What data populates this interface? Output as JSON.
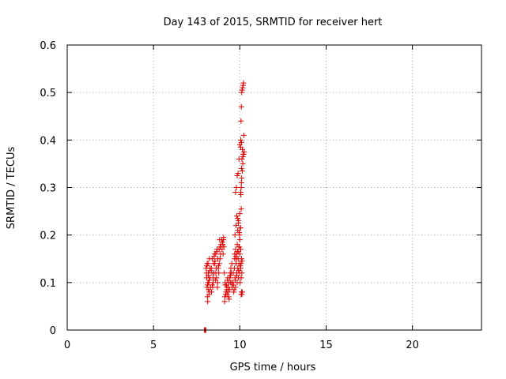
{
  "chart_data": {
    "type": "scatter",
    "title": "Day 143 of 2015, SRMTID for receiver hert",
    "xlabel": "GPS time / hours",
    "ylabel": "SRMTID / TECUs",
    "xlim": [
      0,
      24
    ],
    "ylim": [
      0,
      0.6
    ],
    "xticks": [
      0,
      5,
      10,
      15,
      20
    ],
    "yticks": [
      0,
      0.1,
      0.2,
      0.3,
      0.4,
      0.5,
      0.6
    ],
    "ytick_labels": [
      "0",
      "0.1",
      "0.2",
      "0.3",
      "0.4",
      "0.5",
      "0.6"
    ],
    "grid": true,
    "marker": "plus",
    "color": "#e00000",
    "series": [
      {
        "name": "SRMTID",
        "x": [
          7.95,
          7.97,
          7.99,
          8.01,
          8.03,
          8.05,
          8.08,
          8.1,
          8.12,
          8.14,
          8.16,
          8.18,
          8.2,
          8.22,
          8.24,
          8.26,
          8.28,
          8.3,
          8.07,
          8.11,
          8.15,
          8.19,
          8.23,
          8.27,
          8.09,
          8.13,
          8.17,
          8.21,
          8.35,
          8.4,
          8.45,
          8.5,
          8.55,
          8.6,
          8.65,
          8.7,
          8.75,
          8.8,
          8.85,
          8.9,
          8.38,
          8.43,
          8.48,
          8.53,
          8.58,
          8.63,
          8.68,
          8.73,
          8.78,
          8.83,
          8.88,
          8.36,
          8.46,
          8.56,
          8.66,
          8.76,
          8.86,
          8.41,
          8.51,
          8.61,
          8.71,
          8.81,
          8.95,
          9.0,
          9.02,
          9.05,
          9.08,
          8.97,
          9.03,
          9.06,
          9.1,
          9.15,
          9.2,
          9.25,
          9.3,
          9.35,
          9.4,
          9.45,
          9.5,
          9.55,
          9.12,
          9.18,
          9.22,
          9.28,
          9.32,
          9.38,
          9.42,
          9.48,
          9.52,
          9.14,
          9.24,
          9.34,
          9.44,
          9.54,
          9.16,
          9.26,
          9.36,
          9.46,
          9.6,
          9.62,
          9.65,
          9.68,
          9.7,
          9.72,
          9.75,
          9.78,
          9.8,
          9.82,
          9.85,
          9.88,
          9.9,
          9.92,
          9.95,
          9.98,
          10.0,
          10.02,
          10.05,
          10.08,
          10.1,
          10.12,
          9.63,
          9.73,
          9.83,
          9.93,
          10.03,
          10.13,
          9.67,
          9.77,
          9.87,
          9.97,
          10.07,
          9.7,
          9.75,
          9.8,
          9.85,
          9.9,
          9.95,
          10.0,
          10.05,
          9.72,
          9.78,
          9.82,
          9.88,
          9.92,
          9.98,
          10.02,
          9.75,
          9.8,
          9.85,
          9.9,
          9.95,
          10.0,
          10.05,
          10.1,
          9.88,
          9.92,
          9.96,
          10.0,
          10.04,
          10.08,
          10.05,
          10.08,
          10.1,
          10.12,
          10.15,
          10.18,
          10.2,
          10.06,
          10.09,
          10.11,
          10.14,
          10.17,
          10.22,
          10.25,
          10.05,
          10.07,
          10.09,
          10.11,
          10.13,
          10.16,
          10.19,
          10.21,
          10.23,
          10.08,
          10.1,
          10.12,
          10.14
        ],
        "y": [
          0.0,
          0.0,
          0.0,
          0.0,
          0.0,
          0.13,
          0.11,
          0.09,
          0.07,
          0.06,
          0.14,
          0.12,
          0.1,
          0.08,
          0.15,
          0.11,
          0.13,
          0.09,
          0.12,
          0.14,
          0.1,
          0.085,
          0.105,
          0.125,
          0.135,
          0.095,
          0.115,
          0.075,
          0.13,
          0.15,
          0.1,
          0.12,
          0.14,
          0.16,
          0.11,
          0.09,
          0.13,
          0.17,
          0.15,
          0.18,
          0.12,
          0.09,
          0.14,
          0.16,
          0.105,
          0.13,
          0.17,
          0.15,
          0.12,
          0.19,
          0.16,
          0.08,
          0.11,
          0.145,
          0.165,
          0.135,
          0.175,
          0.095,
          0.155,
          0.12,
          0.1,
          0.14,
          0.19,
          0.185,
          0.18,
          0.19,
          0.175,
          0.17,
          0.16,
          0.195,
          0.12,
          0.1,
          0.08,
          0.09,
          0.11,
          0.07,
          0.085,
          0.1,
          0.12,
          0.09,
          0.06,
          0.075,
          0.095,
          0.105,
          0.08,
          0.065,
          0.11,
          0.13,
          0.1,
          0.07,
          0.085,
          0.09,
          0.12,
          0.14,
          0.095,
          0.075,
          0.1,
          0.115,
          0.1,
          0.12,
          0.08,
          0.13,
          0.15,
          0.11,
          0.09,
          0.14,
          0.16,
          0.12,
          0.1,
          0.13,
          0.15,
          0.11,
          0.14,
          0.12,
          0.16,
          0.1,
          0.13,
          0.11,
          0.15,
          0.12,
          0.095,
          0.105,
          0.115,
          0.125,
          0.135,
          0.145,
          0.085,
          0.155,
          0.165,
          0.175,
          0.14,
          0.16,
          0.17,
          0.15,
          0.18,
          0.165,
          0.175,
          0.19,
          0.17,
          0.2,
          0.22,
          0.24,
          0.21,
          0.23,
          0.2,
          0.215,
          0.29,
          0.3,
          0.325,
          0.33,
          0.36,
          0.39,
          0.385,
          0.395,
          0.235,
          0.225,
          0.205,
          0.245,
          0.215,
          0.255,
          0.29,
          0.3,
          0.34,
          0.36,
          0.38,
          0.365,
          0.37,
          0.285,
          0.31,
          0.32,
          0.335,
          0.35,
          0.37,
          0.375,
          0.4,
          0.44,
          0.47,
          0.5,
          0.505,
          0.51,
          0.515,
          0.52,
          0.41,
          0.075,
          0.08,
          0.075,
          0.08
        ]
      }
    ]
  }
}
